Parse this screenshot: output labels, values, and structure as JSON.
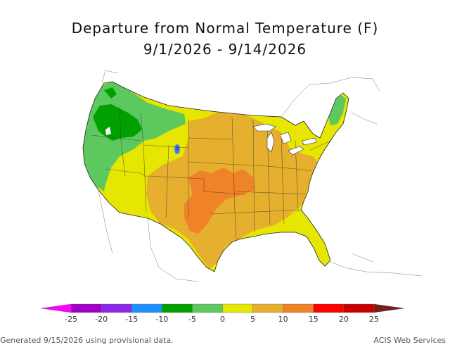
{
  "title": "Departure from Normal Temperature (F)",
  "subtitle": "9/1/2026 - 9/14/2026",
  "legend": {
    "ticks": [
      "-25",
      "-20",
      "-15",
      "-10",
      "-5",
      "0",
      "5",
      "10",
      "15",
      "20",
      "25"
    ],
    "colors": [
      "#ff00ff",
      "#a000c8",
      "#8c28e6",
      "#1e90ff",
      "#00a000",
      "#5dc85d",
      "#e6e600",
      "#e6af2d",
      "#f08228",
      "#ff0000",
      "#c80000",
      "#781e1e"
    ]
  },
  "map": {
    "region": "CONUS",
    "palette": {
      "dark_green": "#00a000",
      "green": "#5dc85d",
      "yellow": "#e6e600",
      "light_orange": "#e6af2d",
      "orange": "#f08228",
      "blue": "#1e90ff",
      "purple": "#8c28e6"
    }
  },
  "footer": {
    "generated": "Generated 9/15/2026 using provisional data.",
    "credit": "ACIS Web Services"
  }
}
